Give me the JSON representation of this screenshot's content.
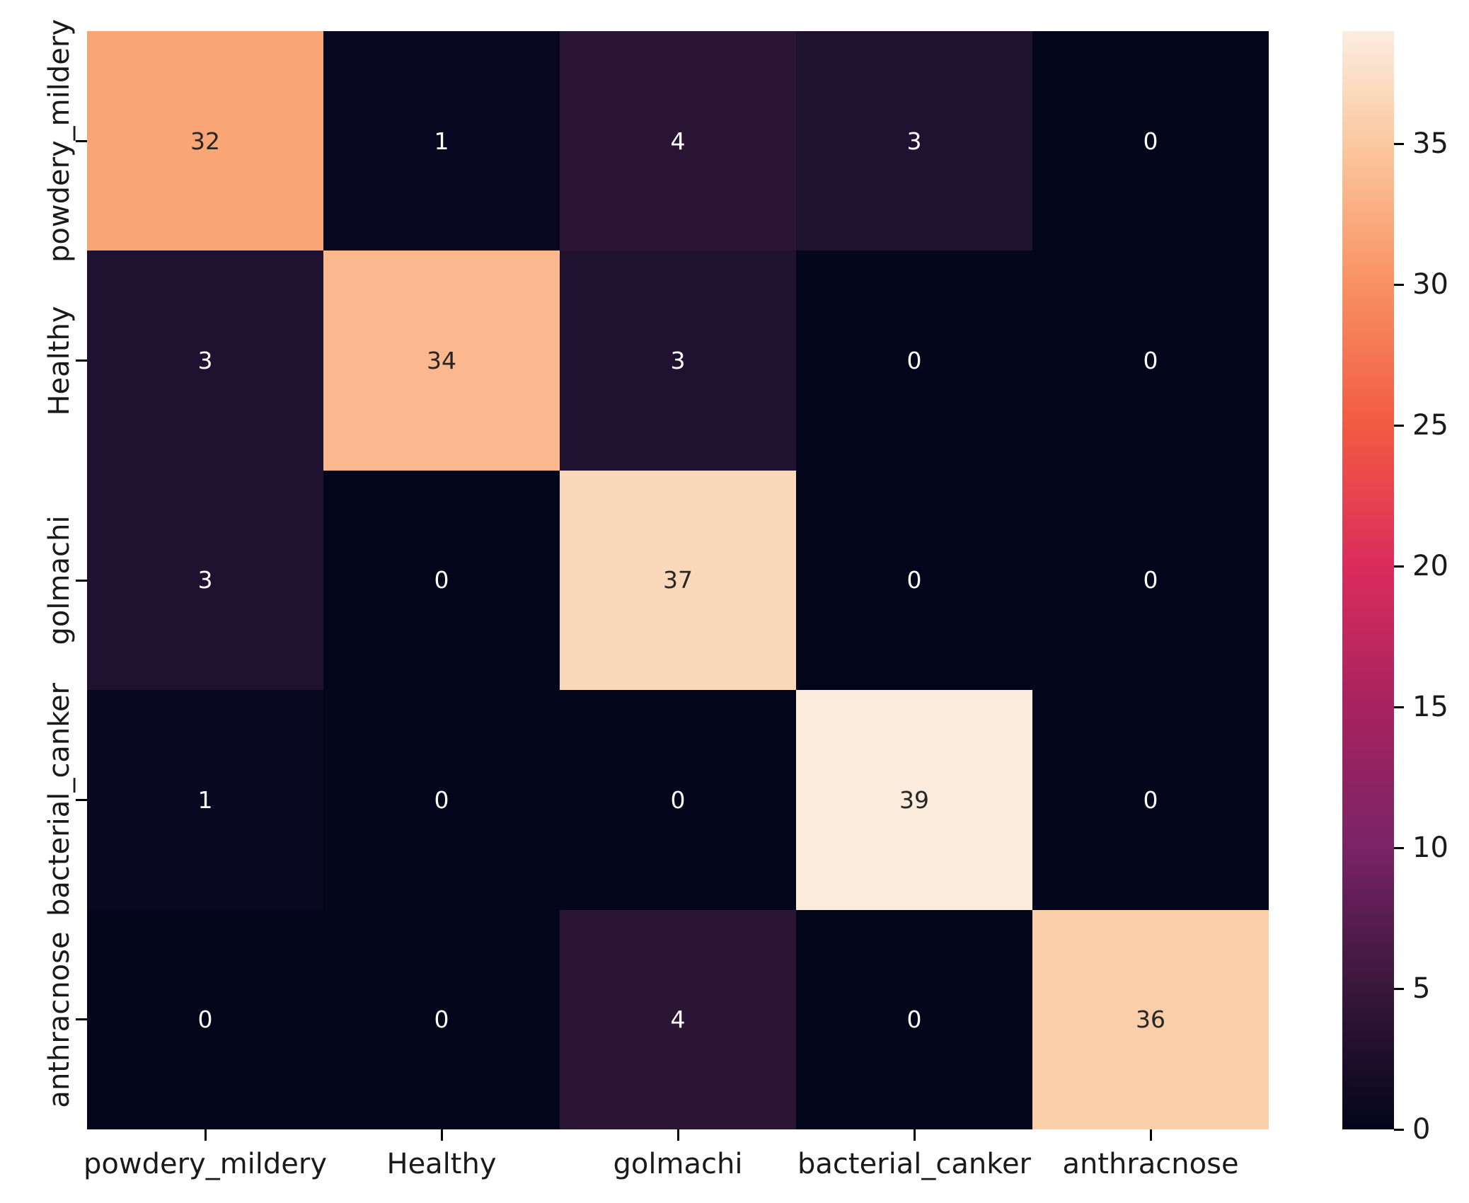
{
  "chart_data": {
    "type": "heatmap",
    "title": "",
    "xlabel": "",
    "ylabel": "",
    "x_labels": [
      "powdery_mildery",
      "Healthy",
      "golmachi",
      "bacterial_canker",
      "anthracnose"
    ],
    "y_labels": [
      "powdery_mildery",
      "Healthy",
      "golmachi",
      "bacterial_canker",
      "anthracnose"
    ],
    "matrix": [
      [
        32,
        1,
        4,
        3,
        0
      ],
      [
        3,
        34,
        3,
        0,
        0
      ],
      [
        3,
        0,
        37,
        0,
        0
      ],
      [
        1,
        0,
        0,
        39,
        0
      ],
      [
        0,
        0,
        4,
        0,
        36
      ]
    ],
    "vmin": 0,
    "vmax": 39,
    "colormap": "rocket",
    "colorbar_ticks": [
      35,
      30,
      25,
      20,
      15,
      10,
      5,
      0
    ],
    "colorbar_position": "right",
    "grid": false,
    "annotated": true
  },
  "colors": {
    "figure_background": "#ffffff",
    "annot_dark": "#262626",
    "annot_light": "#ffffff",
    "axis_text": "#1a1a1a",
    "value_colors": {
      "0": "#03051A",
      "1": "#080921",
      "3": "#1F1130",
      "4": "#2A1634",
      "32": "#F9A576",
      "34": "#FBB88F",
      "36": "#FBCEAA",
      "37": "#FBD8B9",
      "39": "#FAEBDD"
    },
    "gradient_stops": [
      [
        "0",
        "#03051A"
      ],
      [
        "5",
        "#38173B"
      ],
      [
        "10",
        "#7A2366"
      ],
      [
        "15",
        "#A7235F"
      ],
      [
        "20",
        "#DB2C5C"
      ],
      [
        "25",
        "#F25A42"
      ],
      [
        "30",
        "#F89162"
      ],
      [
        "35",
        "#FBC89F"
      ],
      [
        "39",
        "#FBEDE0"
      ]
    ]
  }
}
